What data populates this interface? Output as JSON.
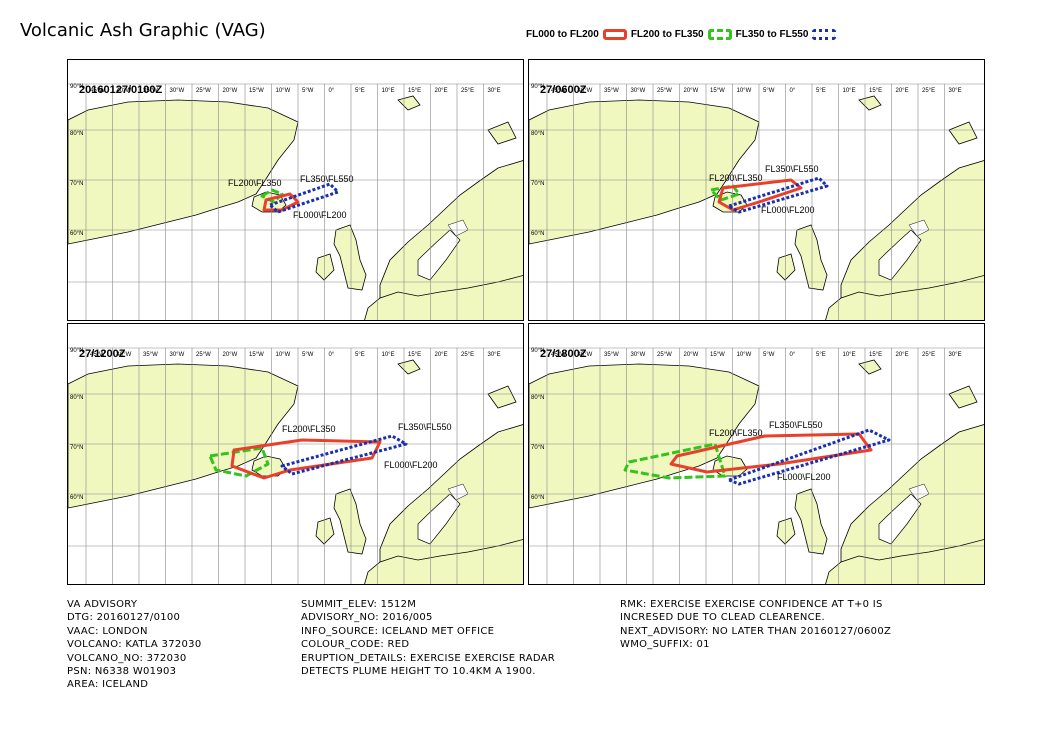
{
  "title": "Volcanic Ash Graphic (VAG)",
  "legend": [
    {
      "label": "FL000 to FL200",
      "color": "#e8402a",
      "style": "solid"
    },
    {
      "label": "FL200 to FL350",
      "color": "#33c41c",
      "style": "dashed"
    },
    {
      "label": "FL350 to FL550",
      "color": "#1a2fb0",
      "style": "dotted"
    }
  ],
  "map": {
    "lon_labels": [
      "45°W",
      "40°W",
      "35°W",
      "30°W",
      "25°W",
      "20°W",
      "15°W",
      "10°W",
      "5°W",
      "0°",
      "5°E",
      "10°E",
      "15°E",
      "20°E",
      "25°E",
      "30°E"
    ],
    "lat_labels": [
      "90°N",
      "80°N",
      "70°N",
      "60°N"
    ]
  },
  "panels": [
    {
      "time": "20160127/0100Z",
      "labels": [
        "FL200\\FL350",
        "FL350\\FL550",
        "FL000\\FL200"
      ]
    },
    {
      "time": "27/0600Z",
      "labels": [
        "FL200\\FL350",
        "FL350\\FL550",
        "FL000\\FL200"
      ]
    },
    {
      "time": "27/1200Z",
      "labels": [
        "FL200\\FL350",
        "FL350\\FL550",
        "FL000\\FL200"
      ]
    },
    {
      "time": "27/1800Z",
      "labels": [
        "FL200\\FL350",
        "FL350\\FL550",
        "FL000\\FL200"
      ]
    }
  ],
  "advisory": {
    "col1": [
      "VA ADVISORY",
      "DTG: 20160127/0100",
      "VAAC: LONDON",
      "VOLCANO: KATLA 372030",
      "VOLCANO_NO: 372030",
      "PSN: N6338 W01903",
      "AREA: ICELAND"
    ],
    "col2": [
      "SUMMIT_ELEV: 1512M",
      "ADVISORY_NO: 2016/005",
      "INFO_SOURCE: ICELAND MET OFFICE",
      "COLOUR_CODE: RED",
      "ERUPTION_DETAILS: EXERCISE EXERCISE  RADAR",
      "DETECTS PLUME HEIGHT TO 10.4KM A 1900."
    ],
    "col3": [
      "RMK: EXERCISE EXERCISE CONFIDENCE AT T+0 IS",
      "INCRESED DUE TO CLEAD CLEARENCE.",
      "NEXT_ADVISORY: NO LATER THAN 20160127/0600Z",
      "WMO_SUFFIX: 01"
    ]
  }
}
